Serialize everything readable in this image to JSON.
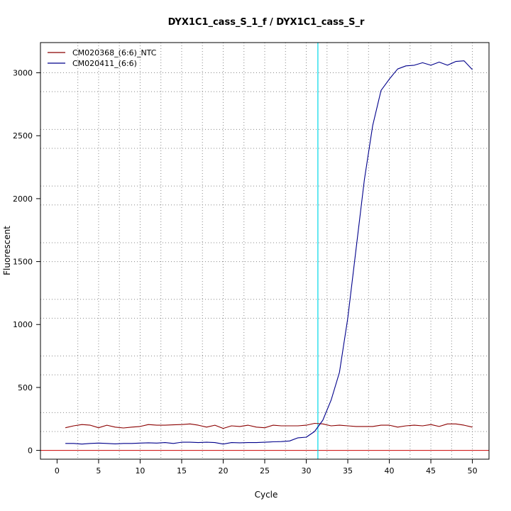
{
  "chart_data": {
    "type": "line",
    "title": "DYX1C1_cass_S_1_f / DYX1C1_cass_S_r",
    "xlabel": "Cycle",
    "ylabel": "Fluorescent",
    "xlim": [
      -2,
      52
    ],
    "ylim": [
      -70,
      3240
    ],
    "x_ticks": [
      0,
      5,
      10,
      15,
      20,
      25,
      30,
      35,
      40,
      45,
      50
    ],
    "y_ticks": [
      0,
      500,
      1000,
      1500,
      2000,
      2500,
      3000
    ],
    "x_grid_minor": [
      2.5,
      7.5,
      12.5,
      17.5,
      22.5,
      27.5,
      32.5,
      37.5,
      42.5,
      47.5
    ],
    "y_grid": [
      0,
      150,
      300,
      600,
      750,
      1050,
      1200,
      1500,
      1650,
      1950,
      2100,
      2400,
      2550,
      2850,
      3000
    ],
    "threshold_x": 31.4,
    "baseline_y": 0,
    "legend_position": "top-left",
    "series": [
      {
        "name": "CM020368_(6:6)_NTC",
        "color": "#8b0000",
        "x": [
          1,
          2,
          3,
          4,
          5,
          6,
          7,
          8,
          9,
          10,
          11,
          12,
          13,
          14,
          15,
          16,
          17,
          18,
          19,
          20,
          21,
          22,
          23,
          24,
          25,
          26,
          27,
          28,
          29,
          30,
          31,
          32,
          33,
          34,
          35,
          36,
          37,
          38,
          39,
          40,
          41,
          42,
          43,
          44,
          45,
          46,
          47,
          48,
          49,
          50
        ],
        "values": [
          180,
          195,
          205,
          200,
          180,
          200,
          185,
          178,
          185,
          190,
          205,
          200,
          200,
          203,
          205,
          210,
          200,
          185,
          200,
          175,
          195,
          190,
          200,
          185,
          180,
          200,
          195,
          195,
          195,
          200,
          215,
          210,
          195,
          200,
          195,
          190,
          190,
          190,
          200,
          200,
          185,
          195,
          200,
          195,
          205,
          190,
          210,
          210,
          200,
          185
        ]
      },
      {
        "name": "CM020411_(6:6)",
        "color": "#00008b",
        "x": [
          1,
          2,
          3,
          4,
          5,
          6,
          7,
          8,
          9,
          10,
          11,
          12,
          13,
          14,
          15,
          16,
          17,
          18,
          19,
          20,
          21,
          22,
          23,
          24,
          25,
          26,
          27,
          28,
          29,
          30,
          31,
          32,
          33,
          34,
          35,
          36,
          37,
          38,
          39,
          40,
          41,
          42,
          43,
          44,
          45,
          46,
          47,
          48,
          49,
          50
        ],
        "values": [
          55,
          55,
          50,
          55,
          58,
          55,
          52,
          55,
          55,
          58,
          60,
          58,
          62,
          55,
          65,
          65,
          62,
          65,
          62,
          50,
          62,
          60,
          62,
          62,
          65,
          68,
          70,
          75,
          100,
          105,
          150,
          240,
          400,
          620,
          1050,
          1600,
          2150,
          2580,
          2860,
          2950,
          3030,
          3055,
          3060,
          3080,
          3060,
          3085,
          3060,
          3090,
          3095,
          3025
        ]
      }
    ]
  }
}
